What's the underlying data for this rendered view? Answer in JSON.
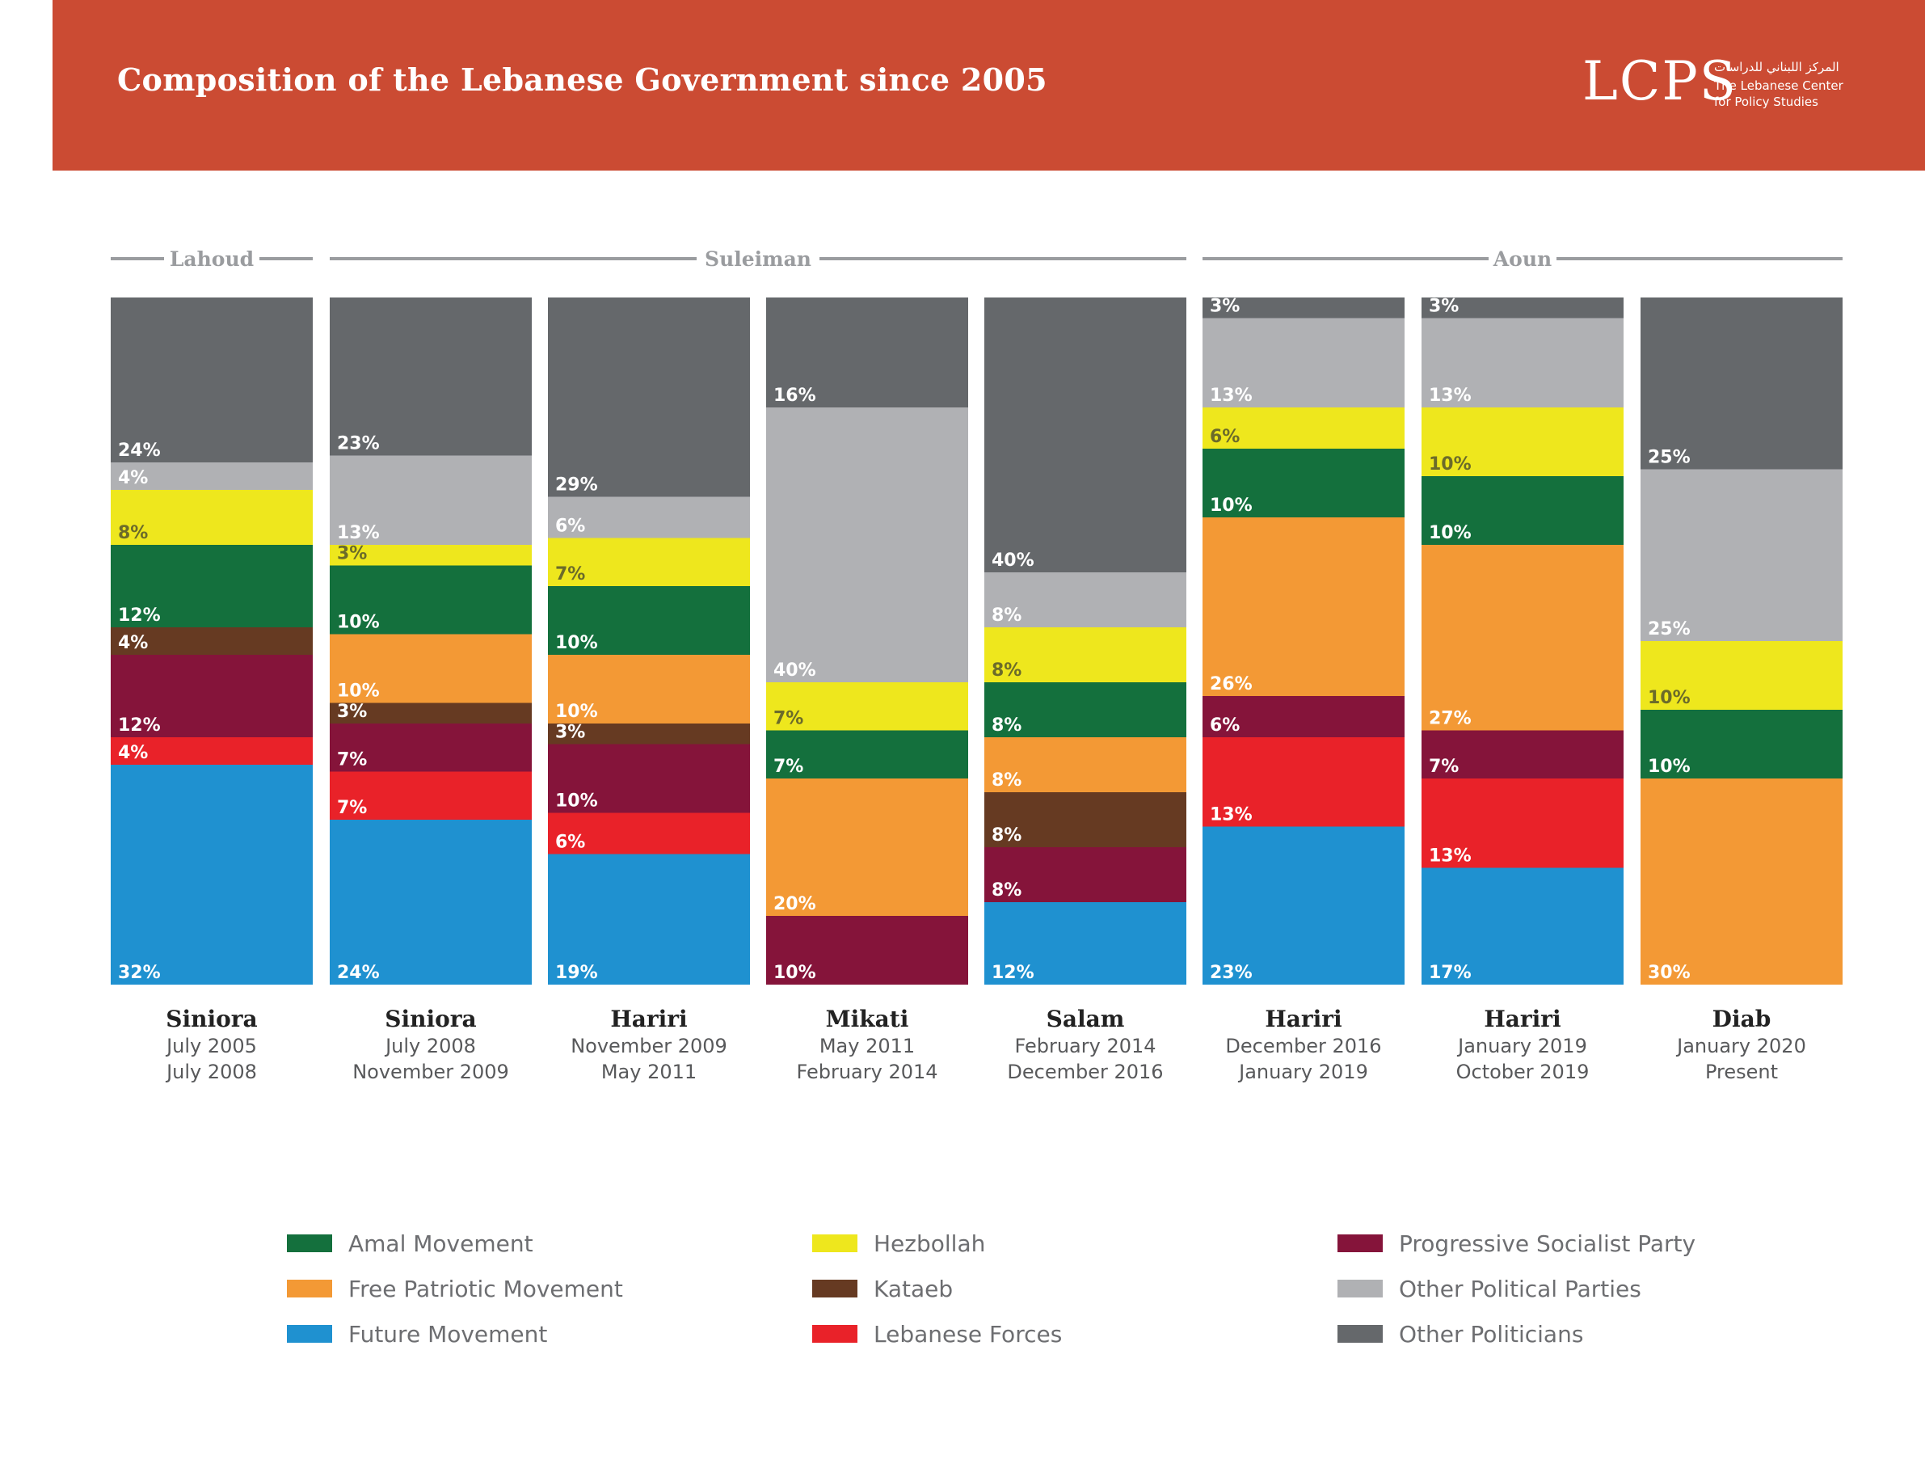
{
  "header": {
    "title": "Composition of the Lebanese Government since 2005",
    "logo": "LCPS",
    "logo_arabic": "المركز اللبناني للدراسات",
    "logo_line1": "The Lebanese Center",
    "logo_line2": "for Policy Studies"
  },
  "colors": {
    "header_bg": "#CB4B33",
    "Amal Movement": "#14703D",
    "Free Patriotic Movement": "#F39935",
    "Future Movement": "#1F91D0",
    "Hezbollah": "#EEE71D",
    "Kataeb": "#663A22",
    "Lebanese Forces": "#E92229",
    "Progressive Socialist Party": "#85143A",
    "Other Political Parties": "#B0B1B4",
    "Other Politicians": "#65686B"
  },
  "chart_data": {
    "type": "bar",
    "stacked": true,
    "title": "Composition of the Lebanese Government since 2005",
    "unit": "%",
    "presidents": [
      {
        "name": "Lahoud",
        "governments": [
          0
        ]
      },
      {
        "name": "Suleiman",
        "governments": [
          1,
          2,
          3,
          4
        ]
      },
      {
        "name": "Aoun",
        "governments": [
          5,
          6,
          7
        ]
      }
    ],
    "categories": [
      {
        "pm": "Siniora",
        "start": "July 2005",
        "end": "July 2008"
      },
      {
        "pm": "Siniora",
        "start": "July 2008",
        "end": "November 2009"
      },
      {
        "pm": "Hariri",
        "start": "November 2009",
        "end": "May 2011"
      },
      {
        "pm": "Mikati",
        "start": "May 2011",
        "end": "February 2014"
      },
      {
        "pm": "Salam",
        "start": "February 2014",
        "end": "December 2016"
      },
      {
        "pm": "Hariri",
        "start": "December 2016",
        "end": "January 2019"
      },
      {
        "pm": "Hariri",
        "start": "January 2019",
        "end": "October 2019"
      },
      {
        "pm": "Diab",
        "start": "January 2020",
        "end": "Present"
      }
    ],
    "stack_order": [
      "Future Movement",
      "Lebanese Forces",
      "Progressive Socialist Party",
      "Kataeb",
      "Free Patriotic Movement",
      "Amal Movement",
      "Hezbollah",
      "Other Political Parties",
      "Other Politicians"
    ],
    "series": [
      {
        "name": "Future Movement",
        "values": [
          32,
          24,
          19,
          0,
          12,
          23,
          17,
          0
        ]
      },
      {
        "name": "Lebanese Forces",
        "values": [
          4,
          7,
          6,
          0,
          0,
          13,
          13,
          0
        ]
      },
      {
        "name": "Progressive Socialist Party",
        "values": [
          12,
          7,
          10,
          10,
          8,
          6,
          7,
          0
        ]
      },
      {
        "name": "Kataeb",
        "values": [
          4,
          3,
          3,
          0,
          8,
          0,
          0,
          0
        ]
      },
      {
        "name": "Free Patriotic Movement",
        "values": [
          0,
          10,
          10,
          20,
          8,
          26,
          27,
          30
        ]
      },
      {
        "name": "Amal Movement",
        "values": [
          12,
          10,
          10,
          7,
          8,
          10,
          10,
          10
        ]
      },
      {
        "name": "Hezbollah",
        "values": [
          8,
          3,
          7,
          7,
          8,
          6,
          10,
          10
        ]
      },
      {
        "name": "Other Political Parties",
        "values": [
          4,
          13,
          6,
          40,
          8,
          13,
          13,
          25
        ]
      },
      {
        "name": "Other Politicians",
        "values": [
          24,
          23,
          29,
          16,
          40,
          3,
          3,
          25
        ]
      }
    ],
    "legend": [
      "Amal Movement",
      "Free Patriotic Movement",
      "Future Movement",
      "Hezbollah",
      "Kataeb",
      "Lebanese Forces",
      "Progressive Socialist Party",
      "Other Political Parties",
      "Other Politicians"
    ]
  }
}
